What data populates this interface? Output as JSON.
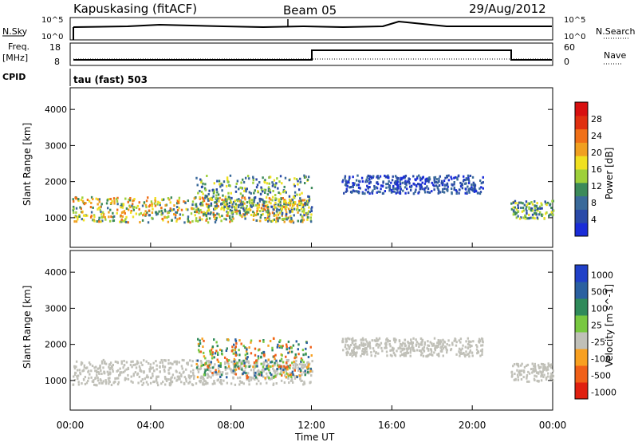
{
  "header": {
    "station": "Kapuskasing (fitACF)",
    "beam": "Beam 05",
    "date": "29/Aug/2012"
  },
  "top_panels": {
    "nsky": {
      "label": "N.Sky",
      "ticks_left": [
        "10^5",
        "10^0"
      ],
      "ticks_right": [
        "10^5",
        "10^0"
      ],
      "right_label": "N.Search"
    },
    "freq": {
      "label_line1": "Freq.",
      "label_line2": "[MHz]",
      "ticks_left": [
        "18",
        "8"
      ],
      "ticks_right": [
        "60",
        "0"
      ],
      "right_label": "Nave"
    },
    "cpid": {
      "label": "CPID",
      "text": "tau (fast) 503"
    }
  },
  "chart_data": [
    {
      "type": "heatmap",
      "title": "",
      "ylabel": "Slant Range [km]",
      "xlabel": "",
      "ylim": [
        180,
        4600
      ],
      "xlim": [
        "00:00",
        "24:00"
      ],
      "yticks": [
        1000,
        2000,
        3000,
        4000
      ],
      "colorbar": {
        "label": "Power [dB]",
        "ticks": [
          "4",
          "8",
          "12",
          "16",
          "20",
          "24",
          "28"
        ],
        "colors": [
          "#1a2cd8",
          "#2a4aa8",
          "#3a6a9a",
          "#3c8a5a",
          "#9ed03a",
          "#f0e020",
          "#f0a020",
          "#f07018",
          "#e03010",
          "#d81010"
        ]
      },
      "scatter_regions": [
        {
          "time_start": 0.1,
          "time_end": 12.0,
          "range_low": 900,
          "range_high": 1600,
          "level": "medium-high"
        },
        {
          "time_start": 6.2,
          "time_end": 12.0,
          "range_low": 1100,
          "range_high": 2200,
          "level": "medium"
        },
        {
          "time_start": 13.5,
          "time_end": 20.5,
          "range_low": 1700,
          "range_high": 2200,
          "level": "low"
        },
        {
          "time_start": 21.9,
          "time_end": 24.0,
          "range_low": 1000,
          "range_high": 1500,
          "level": "medium"
        }
      ]
    },
    {
      "type": "heatmap",
      "title": "",
      "ylabel": "Slant Range [km]",
      "xlabel": "Time UT",
      "ylim": [
        180,
        4600
      ],
      "xlim": [
        "00:00",
        "24:00"
      ],
      "yticks": [
        1000,
        2000,
        3000,
        4000
      ],
      "xticks": [
        "00:00",
        "04:00",
        "08:00",
        "12:00",
        "16:00",
        "20:00",
        "00:00"
      ],
      "colorbar": {
        "label": "Velocity [m s^-1]",
        "ticks": [
          "1000",
          "500",
          "100",
          "25",
          "-25",
          "-100",
          "-500",
          "-1000"
        ],
        "colors": [
          "#2040c8",
          "#2a60a0",
          "#2f8a5a",
          "#78c840",
          "#c0c0b8",
          "#f8a020",
          "#f06018",
          "#e02010"
        ]
      },
      "scatter_regions": [
        {
          "time_start": 0.1,
          "time_end": 12.0,
          "range_low": 900,
          "range_high": 1600,
          "level": "ground-scatter"
        },
        {
          "time_start": 6.2,
          "time_end": 12.0,
          "range_low": 1100,
          "range_high": 2200,
          "level": "positive"
        },
        {
          "time_start": 13.5,
          "time_end": 20.5,
          "range_low": 1700,
          "range_high": 2200,
          "level": "ground-scatter"
        },
        {
          "time_start": 21.9,
          "time_end": 24.0,
          "range_low": 1000,
          "range_high": 1500,
          "level": "ground-scatter"
        }
      ]
    }
  ]
}
